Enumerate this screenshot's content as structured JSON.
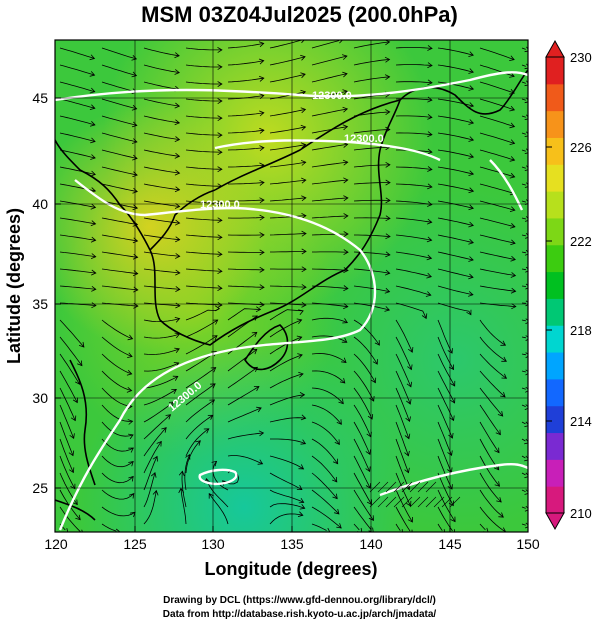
{
  "title": "MSM 03Z04Jul2025 (200.0hPa)",
  "x_axis": {
    "label": "Longitude (degrees)",
    "ticks": [
      "120",
      "125",
      "130",
      "135",
      "140",
      "145",
      "150"
    ]
  },
  "y_axis": {
    "label": "Latitude  (degrees)",
    "ticks": [
      "25",
      "30",
      "35",
      "40",
      "45"
    ]
  },
  "colorbar": {
    "ticks": [
      "230",
      "226",
      "222",
      "218",
      "214",
      "210"
    ],
    "colors": [
      "#d7197d",
      "#c81fb8",
      "#7a2ad2",
      "#1f3fd8",
      "#1268ff",
      "#00a5ff",
      "#00d6d0",
      "#00c874",
      "#00c020",
      "#3ccc10",
      "#7dd716",
      "#b7e01c",
      "#e6e020",
      "#f7c01a",
      "#f7931a",
      "#f05a1a",
      "#e02020"
    ]
  },
  "contour_labels": [
    "12300.0",
    "12300.0",
    "12300.0",
    "12300.0"
  ],
  "credits": [
    "Drawing by DCL (https://www.gfd-dennou.org/library/dcl/)",
    "Data from http://database.rish.kyoto-u.ac.jp/arch/jmadata/"
  ],
  "colors": {
    "field_base": "#3cc83c",
    "field_warm": "#c6dc1e",
    "field_cool": "#14c8a0",
    "contour": "#ffffff",
    "streamline": "#000000"
  }
}
